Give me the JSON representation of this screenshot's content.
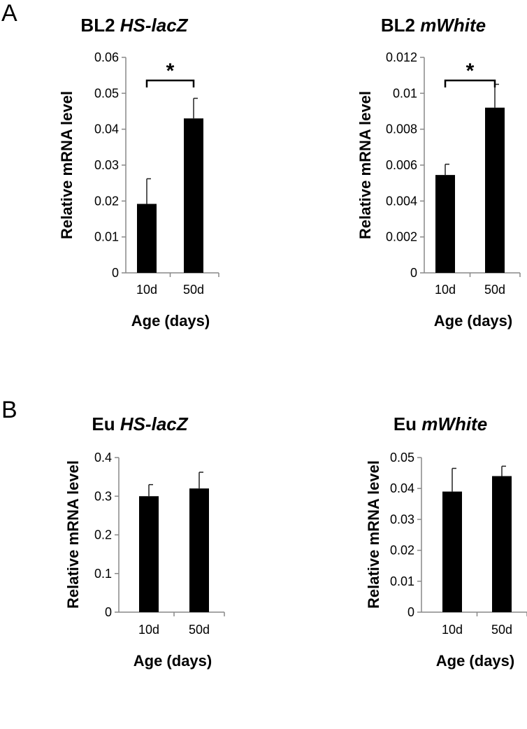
{
  "panels": [
    {
      "label": "A"
    },
    {
      "label": "B"
    }
  ],
  "chart_data": [
    {
      "type": "bar",
      "panel": "A",
      "title_prefix": "BL2",
      "title_italic": "HS-lacZ",
      "title": "BL2 HS-lacZ",
      "categories": [
        "10d",
        "50d"
      ],
      "values": [
        0.0192,
        0.043
      ],
      "errors": [
        0.007,
        0.0056
      ],
      "xlabel": "Age (days)",
      "ylabel": "Relative mRNA level",
      "ylim": [
        0,
        0.06
      ],
      "yticks": [
        0,
        0.01,
        0.02,
        0.03,
        0.04,
        0.05,
        0.06
      ],
      "ytick_labels": [
        "0",
        "0.01",
        "0.02",
        "0.03",
        "0.04",
        "0.05",
        "0.06"
      ],
      "significance": "*"
    },
    {
      "type": "bar",
      "panel": "A",
      "title_prefix": "BL2",
      "title_italic": "mWhite",
      "title": "BL2 mWhite",
      "categories": [
        "10d",
        "50d"
      ],
      "values": [
        0.00545,
        0.0092
      ],
      "errors": [
        0.0006,
        0.0013
      ],
      "xlabel": "Age (days)",
      "ylabel": "Relative mRNA level",
      "ylim": [
        0,
        0.012
      ],
      "yticks": [
        0,
        0.002,
        0.004,
        0.006,
        0.008,
        0.01,
        0.012
      ],
      "ytick_labels": [
        "0",
        "0.002",
        "0.004",
        "0.006",
        "0.008",
        "0.01",
        "0.012"
      ],
      "significance": "*"
    },
    {
      "type": "bar",
      "panel": "B",
      "title_prefix": "Eu",
      "title_italic": "HS-lacZ",
      "title": "Eu HS-lacZ",
      "categories": [
        "10d",
        "50d"
      ],
      "values": [
        0.3,
        0.32
      ],
      "errors": [
        0.03,
        0.042
      ],
      "xlabel": "Age (days)",
      "ylabel": "Relative mRNA level",
      "ylim": [
        0,
        0.4
      ],
      "yticks": [
        0,
        0.1,
        0.2,
        0.3,
        0.4
      ],
      "ytick_labels": [
        "0",
        "0.1",
        "0.2",
        "0.3",
        "0.4"
      ],
      "significance": ""
    },
    {
      "type": "bar",
      "panel": "B",
      "title_prefix": "Eu",
      "title_italic": "mWhite",
      "title": "Eu mWhite",
      "categories": [
        "10d",
        "50d"
      ],
      "values": [
        0.039,
        0.044
      ],
      "errors": [
        0.0075,
        0.0032
      ],
      "xlabel": "Age (days)",
      "ylabel": "Relative mRNA level",
      "ylim": [
        0,
        0.05
      ],
      "yticks": [
        0,
        0.01,
        0.02,
        0.03,
        0.04,
        0.05
      ],
      "ytick_labels": [
        "0",
        "0.01",
        "0.02",
        "0.03",
        "0.04",
        "0.05"
      ],
      "significance": ""
    }
  ]
}
